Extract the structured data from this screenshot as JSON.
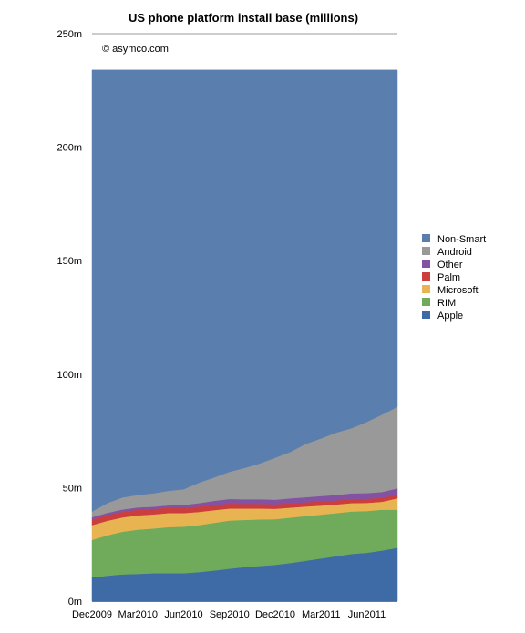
{
  "chart_data": {
    "type": "area",
    "stacked": true,
    "title": "US phone platform install base (millions)",
    "credit": "© asymco.com",
    "xlabel": "",
    "ylabel": "",
    "ylim": [
      0,
      250
    ],
    "yticks": [
      0,
      50,
      100,
      150,
      200,
      250
    ],
    "ytick_labels": [
      "0m",
      "50m",
      "100m",
      "150m",
      "200m",
      "250m"
    ],
    "x": [
      "Dec2009",
      "Jan2010",
      "Feb2010",
      "Mar2010",
      "Apr2010",
      "May2010",
      "Jun2010",
      "Jul2010",
      "Aug2010",
      "Sep2010",
      "Oct2010",
      "Nov2010",
      "Dec2010",
      "Jan2011",
      "Feb2011",
      "Mar2011",
      "Apr2011",
      "May2011",
      "Jun2011",
      "Jul2011",
      "Aug2011"
    ],
    "xtick_labels": [
      "Dec2009",
      "Mar2010",
      "Jun2010",
      "Sep2010",
      "Dec2010",
      "Mar2011",
      "Jun2011"
    ],
    "grid": "top line only",
    "legend_position": "right",
    "series": [
      {
        "name": "Apple",
        "color": "#3e6aa5",
        "values": [
          10.5,
          11.2,
          11.8,
          12.0,
          12.3,
          12.3,
          12.3,
          12.8,
          13.5,
          14.3,
          15.0,
          15.5,
          16.0,
          16.8,
          17.8,
          18.8,
          19.8,
          20.8,
          21.3,
          22.3,
          23.5
        ]
      },
      {
        "name": "RIM",
        "color": "#6fab5b",
        "values": [
          16.5,
          17.8,
          18.8,
          19.5,
          19.7,
          20.3,
          20.5,
          20.7,
          21.0,
          21.2,
          20.8,
          20.5,
          20.1,
          20.0,
          19.7,
          19.3,
          19.0,
          18.7,
          18.4,
          18.0,
          16.8
        ]
      },
      {
        "name": "Microsoft",
        "color": "#e8b452",
        "values": [
          6.5,
          6.4,
          6.3,
          6.3,
          6.2,
          6.2,
          6.0,
          5.8,
          5.6,
          5.3,
          5.0,
          4.8,
          4.6,
          4.4,
          4.2,
          4.0,
          3.8,
          3.7,
          3.6,
          3.5,
          5.0
        ]
      },
      {
        "name": "Palm",
        "color": "#cc3e3e",
        "values": [
          2.5,
          2.5,
          2.5,
          2.5,
          2.4,
          2.4,
          2.4,
          2.4,
          2.3,
          2.2,
          2.1,
          2.1,
          2.0,
          2.0,
          1.9,
          1.9,
          1.8,
          1.8,
          1.8,
          1.7,
          1.7
        ]
      },
      {
        "name": "Other",
        "color": "#8452a2",
        "values": [
          1.0,
          1.0,
          1.0,
          1.0,
          1.0,
          1.0,
          1.2,
          1.5,
          1.8,
          2.0,
          2.0,
          2.0,
          2.0,
          2.1,
          2.2,
          2.3,
          2.4,
          2.5,
          2.5,
          2.6,
          2.7
        ]
      },
      {
        "name": "Android",
        "color": "#999999",
        "values": [
          2.5,
          4.3,
          5.3,
          5.5,
          5.9,
          6.4,
          6.9,
          9.0,
          10.3,
          12.0,
          13.8,
          15.8,
          18.5,
          20.5,
          23.5,
          25.4,
          27.5,
          28.7,
          31.4,
          34.1,
          35.9
        ]
      },
      {
        "name": "Non-Smart",
        "color": "#5a7ead",
        "values": [
          194.5,
          190.8,
          188.3,
          187.2,
          186.5,
          185.4,
          184.7,
          181.8,
          179.5,
          177.0,
          175.3,
          173.3,
          170.8,
          168.2,
          164.7,
          162.3,
          159.7,
          157.8,
          155.0,
          151.8,
          148.4
        ]
      }
    ]
  }
}
